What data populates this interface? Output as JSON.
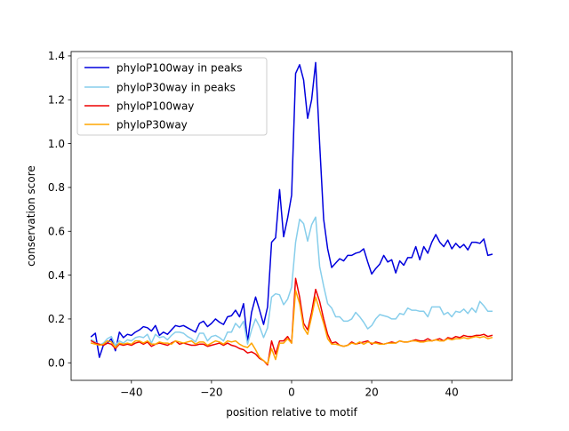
{
  "chart_data": {
    "type": "line",
    "title": "",
    "xlabel": "position relative to motif",
    "ylabel": "conservation score",
    "xlim": [
      -55.05,
      55.05
    ],
    "ylim": [
      -0.08,
      1.42
    ],
    "xticks": [
      -40,
      -20,
      0,
      20,
      40
    ],
    "xtick_labels": [
      "−40",
      "−20",
      "0",
      "20",
      "40"
    ],
    "yticks": [
      0.0,
      0.2,
      0.4,
      0.6,
      0.8,
      1.0,
      1.2,
      1.4
    ],
    "ytick_labels": [
      "0.0",
      "0.2",
      "0.4",
      "0.6",
      "0.8",
      "1.0",
      "1.2",
      "1.4"
    ],
    "grid": false,
    "legend_position": "top-left",
    "series": [
      {
        "name": "phyloP100way in peaks",
        "color": "#0000dd",
        "x": [
          -50,
          -49,
          -48,
          -47,
          -46,
          -45,
          -44,
          -43,
          -42,
          -41,
          -40,
          -39,
          -38,
          -37,
          -36,
          -35,
          -34,
          -33,
          -32,
          -31,
          -30,
          -29,
          -28,
          -27,
          -26,
          -25,
          -24,
          -23,
          -22,
          -21,
          -20,
          -19,
          -18,
          -17,
          -16,
          -15,
          -14,
          -13,
          -12,
          -11,
          -10,
          -9,
          -8,
          -7,
          -6,
          -5,
          -4,
          -3,
          -2,
          -1,
          0,
          1,
          2,
          3,
          4,
          5,
          6,
          7,
          8,
          9,
          10,
          11,
          12,
          13,
          14,
          15,
          16,
          17,
          18,
          19,
          20,
          21,
          22,
          23,
          24,
          25,
          26,
          27,
          28,
          29,
          30,
          31,
          32,
          33,
          34,
          35,
          36,
          37,
          38,
          39,
          40,
          41,
          42,
          43,
          44,
          45,
          46,
          47,
          48,
          49,
          50
        ],
        "y": [
          0.12,
          0.135,
          0.025,
          0.08,
          0.09,
          0.11,
          0.055,
          0.14,
          0.115,
          0.13,
          0.125,
          0.14,
          0.15,
          0.165,
          0.16,
          0.145,
          0.17,
          0.125,
          0.14,
          0.13,
          0.15,
          0.17,
          0.165,
          0.17,
          0.16,
          0.15,
          0.14,
          0.18,
          0.19,
          0.165,
          0.18,
          0.2,
          0.185,
          0.175,
          0.21,
          0.215,
          0.24,
          0.21,
          0.27,
          0.095,
          0.23,
          0.3,
          0.24,
          0.175,
          0.255,
          0.55,
          0.57,
          0.79,
          0.575,
          0.66,
          0.765,
          1.32,
          1.36,
          1.29,
          1.115,
          1.2,
          1.37,
          1.0,
          0.655,
          0.52,
          0.435,
          0.455,
          0.475,
          0.465,
          0.49,
          0.49,
          0.5,
          0.505,
          0.52,
          0.46,
          0.405,
          0.43,
          0.45,
          0.49,
          0.46,
          0.47,
          0.41,
          0.465,
          0.445,
          0.48,
          0.48,
          0.53,
          0.47,
          0.53,
          0.5,
          0.55,
          0.585,
          0.55,
          0.53,
          0.56,
          0.52,
          0.545,
          0.525,
          0.54,
          0.515,
          0.55,
          0.55,
          0.545,
          0.565,
          0.49,
          0.495
        ]
      },
      {
        "name": "phyloP30way in peaks",
        "color": "#87ceeb",
        "x": [
          -50,
          -49,
          -48,
          -47,
          -46,
          -45,
          -44,
          -43,
          -42,
          -41,
          -40,
          -39,
          -38,
          -37,
          -36,
          -35,
          -34,
          -33,
          -32,
          -31,
          -30,
          -29,
          -28,
          -27,
          -26,
          -25,
          -24,
          -23,
          -22,
          -21,
          -20,
          -19,
          -18,
          -17,
          -16,
          -15,
          -14,
          -13,
          -12,
          -11,
          -10,
          -9,
          -8,
          -7,
          -6,
          -5,
          -4,
          -3,
          -2,
          -1,
          0,
          1,
          2,
          3,
          4,
          5,
          6,
          7,
          8,
          9,
          10,
          11,
          12,
          13,
          14,
          15,
          16,
          17,
          18,
          19,
          20,
          21,
          22,
          23,
          24,
          25,
          26,
          27,
          28,
          29,
          30,
          31,
          32,
          33,
          34,
          35,
          36,
          37,
          38,
          39,
          40,
          41,
          42,
          43,
          44,
          45,
          46,
          47,
          48,
          49,
          50
        ],
        "y": [
          0.105,
          0.095,
          0.08,
          0.09,
          0.11,
          0.12,
          0.08,
          0.1,
          0.09,
          0.105,
          0.1,
          0.115,
          0.12,
          0.115,
          0.13,
          0.09,
          0.13,
          0.115,
          0.12,
          0.105,
          0.125,
          0.14,
          0.14,
          0.135,
          0.12,
          0.11,
          0.095,
          0.135,
          0.135,
          0.1,
          0.12,
          0.125,
          0.115,
          0.1,
          0.14,
          0.14,
          0.18,
          0.16,
          0.19,
          0.085,
          0.15,
          0.2,
          0.165,
          0.115,
          0.16,
          0.3,
          0.315,
          0.31,
          0.265,
          0.29,
          0.345,
          0.55,
          0.655,
          0.635,
          0.555,
          0.63,
          0.665,
          0.44,
          0.35,
          0.27,
          0.25,
          0.21,
          0.21,
          0.19,
          0.19,
          0.2,
          0.23,
          0.21,
          0.185,
          0.155,
          0.17,
          0.2,
          0.22,
          0.215,
          0.21,
          0.2,
          0.2,
          0.225,
          0.22,
          0.25,
          0.24,
          0.24,
          0.235,
          0.235,
          0.21,
          0.255,
          0.255,
          0.255,
          0.22,
          0.23,
          0.21,
          0.235,
          0.23,
          0.245,
          0.225,
          0.25,
          0.23,
          0.28,
          0.26,
          0.235,
          0.235
        ]
      },
      {
        "name": "phyloP100way",
        "color": "#ee0000",
        "x": [
          -50,
          -49,
          -48,
          -47,
          -46,
          -45,
          -44,
          -43,
          -42,
          -41,
          -40,
          -39,
          -38,
          -37,
          -36,
          -35,
          -34,
          -33,
          -32,
          -31,
          -30,
          -29,
          -28,
          -27,
          -26,
          -25,
          -24,
          -23,
          -22,
          -21,
          -20,
          -19,
          -18,
          -17,
          -16,
          -15,
          -14,
          -13,
          -12,
          -11,
          -10,
          -9,
          -8,
          -7,
          -6,
          -5,
          -4,
          -3,
          -2,
          -1,
          0,
          1,
          2,
          3,
          4,
          5,
          6,
          7,
          8,
          9,
          10,
          11,
          12,
          13,
          14,
          15,
          16,
          17,
          18,
          19,
          20,
          21,
          22,
          23,
          24,
          25,
          26,
          27,
          28,
          29,
          30,
          31,
          32,
          33,
          34,
          35,
          36,
          37,
          38,
          39,
          40,
          41,
          42,
          43,
          44,
          45,
          46,
          47,
          48,
          49,
          50
        ],
        "y": [
          0.1,
          0.09,
          0.085,
          0.08,
          0.09,
          0.085,
          0.065,
          0.085,
          0.08,
          0.085,
          0.08,
          0.09,
          0.095,
          0.085,
          0.095,
          0.075,
          0.085,
          0.09,
          0.085,
          0.08,
          0.09,
          0.1,
          0.085,
          0.09,
          0.085,
          0.08,
          0.08,
          0.085,
          0.085,
          0.075,
          0.08,
          0.085,
          0.09,
          0.08,
          0.09,
          0.08,
          0.075,
          0.065,
          0.06,
          0.045,
          0.05,
          0.04,
          0.02,
          0.01,
          -0.01,
          0.1,
          0.04,
          0.1,
          0.1,
          0.12,
          0.09,
          0.385,
          0.3,
          0.18,
          0.15,
          0.23,
          0.335,
          0.28,
          0.2,
          0.13,
          0.09,
          0.095,
          0.08,
          0.075,
          0.08,
          0.095,
          0.085,
          0.09,
          0.095,
          0.1,
          0.085,
          0.095,
          0.09,
          0.085,
          0.09,
          0.095,
          0.09,
          0.1,
          0.095,
          0.095,
          0.1,
          0.105,
          0.1,
          0.1,
          0.11,
          0.1,
          0.105,
          0.11,
          0.1,
          0.115,
          0.11,
          0.12,
          0.115,
          0.125,
          0.12,
          0.12,
          0.125,
          0.125,
          0.13,
          0.12,
          0.125
        ]
      },
      {
        "name": "phyloP30way",
        "color": "#ffa500",
        "x": [
          -50,
          -49,
          -48,
          -47,
          -46,
          -45,
          -44,
          -43,
          -42,
          -41,
          -40,
          -39,
          -38,
          -37,
          -36,
          -35,
          -34,
          -33,
          -32,
          -31,
          -30,
          -29,
          -28,
          -27,
          -26,
          -25,
          -24,
          -23,
          -22,
          -21,
          -20,
          -19,
          -18,
          -17,
          -16,
          -15,
          -14,
          -13,
          -12,
          -11,
          -10,
          -9,
          -8,
          -7,
          -6,
          -5,
          -4,
          -3,
          -2,
          -1,
          0,
          1,
          2,
          3,
          4,
          5,
          6,
          7,
          8,
          9,
          10,
          11,
          12,
          13,
          14,
          15,
          16,
          17,
          18,
          19,
          20,
          21,
          22,
          23,
          24,
          25,
          26,
          27,
          28,
          29,
          30,
          31,
          32,
          33,
          34,
          35,
          36,
          37,
          38,
          39,
          40,
          41,
          42,
          43,
          44,
          45,
          46,
          47,
          48,
          49,
          50
        ],
        "y": [
          0.09,
          0.085,
          0.08,
          0.085,
          0.1,
          0.095,
          0.07,
          0.09,
          0.085,
          0.09,
          0.085,
          0.1,
          0.1,
          0.09,
          0.1,
          0.085,
          0.085,
          0.095,
          0.09,
          0.09,
          0.085,
          0.1,
          0.095,
          0.09,
          0.095,
          0.1,
          0.085,
          0.095,
          0.095,
          0.08,
          0.09,
          0.1,
          0.095,
          0.085,
          0.1,
          0.095,
          0.1,
          0.085,
          0.075,
          0.07,
          0.09,
          0.06,
          0.025,
          0.01,
          -0.005,
          0.065,
          0.015,
          0.09,
          0.09,
          0.11,
          0.09,
          0.33,
          0.27,
          0.16,
          0.13,
          0.21,
          0.3,
          0.24,
          0.18,
          0.11,
          0.085,
          0.085,
          0.08,
          0.075,
          0.08,
          0.09,
          0.085,
          0.095,
          0.085,
          0.095,
          0.09,
          0.09,
          0.085,
          0.085,
          0.09,
          0.09,
          0.09,
          0.1,
          0.095,
          0.095,
          0.1,
          0.1,
          0.095,
          0.095,
          0.1,
          0.1,
          0.105,
          0.1,
          0.1,
          0.11,
          0.105,
          0.11,
          0.11,
          0.115,
          0.11,
          0.115,
          0.12,
          0.115,
          0.12,
          0.11,
          0.115
        ]
      }
    ]
  }
}
